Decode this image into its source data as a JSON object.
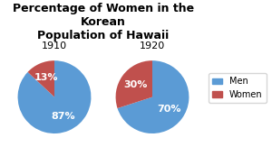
{
  "title": "Percentage of Women in the Korean\nPopulation of Hawaii",
  "legend": "center right",
  "chart_data": [
    {
      "type": "pie",
      "title": "1910",
      "categories": [
        "Men",
        "Women"
      ],
      "values": [
        87,
        13
      ],
      "value_labels": [
        "87%",
        "13%"
      ],
      "colors": [
        "#5b9bd5",
        "#c0504d"
      ],
      "data_labels": true
    },
    {
      "type": "pie",
      "title": "1920",
      "categories": [
        "Men",
        "Women"
      ],
      "values": [
        70,
        30
      ],
      "value_labels": [
        "70%",
        "30%"
      ],
      "colors": [
        "#5b9bd5",
        "#c0504d"
      ],
      "data_labels": true
    }
  ]
}
